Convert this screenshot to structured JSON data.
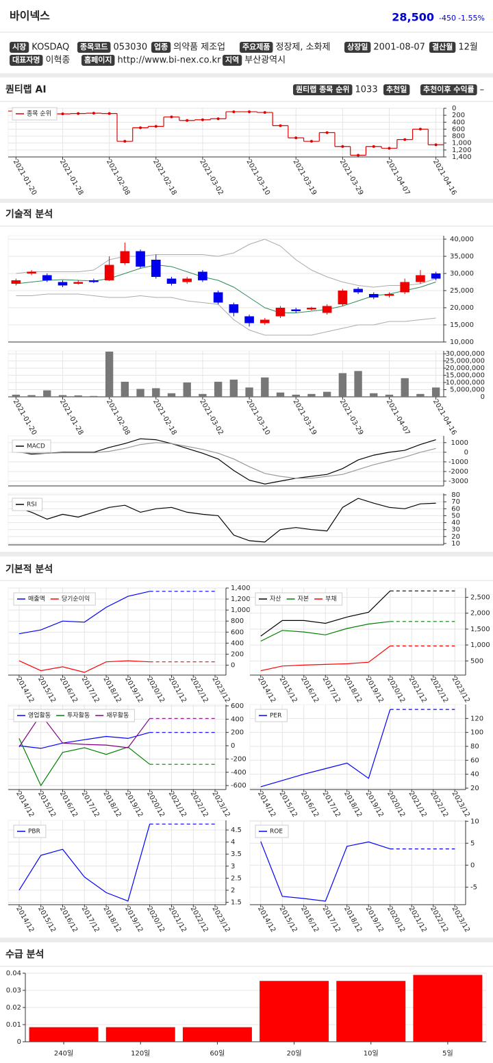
{
  "header": {
    "name": "바이넥스",
    "price": "28,500",
    "change": "-450",
    "change_rate": "-1.55%"
  },
  "info": [
    {
      "label": "시장",
      "value": "KOSDAQ"
    },
    {
      "label": "종목코드",
      "value": "053030"
    },
    {
      "label": "업종",
      "value": "의약품 제조업"
    },
    {
      "label": "주요제품",
      "value": "정장제, 소화제"
    },
    {
      "label": "상장일",
      "value": "2001-08-07"
    },
    {
      "label": "결산월",
      "value": "12월"
    },
    {
      "label": "대표자명",
      "value": "이혁종"
    },
    {
      "label": "홈페이지",
      "value": "http://www.bi-nex.co.kr"
    },
    {
      "label": "지역",
      "value": "부산광역시"
    }
  ],
  "sections": [
    "퀀티랩 AI",
    "기술적 분석",
    "기본적 분석",
    "수급 분석"
  ],
  "quantilab": [
    {
      "label": "퀀티랩 종목 순위",
      "value": 1033
    },
    {
      "label": "추천일"
    },
    {
      "label": "추천이후 수익률",
      "value": "–"
    }
  ],
  "chart_data": [
    {
      "type": "step",
      "y_inverted": true,
      "grid": true,
      "categories": [
        "2021-01-20",
        null,
        null,
        "2021-01-28",
        null,
        null,
        "2021-02-08",
        null,
        null,
        "2021-02-18",
        null,
        null,
        "2021-03-02",
        null,
        null,
        "2021-03-10",
        null,
        null,
        "2021-03-19",
        null,
        null,
        "2021-03-29",
        null,
        null,
        "2021-04-07",
        null,
        null,
        "2021-04-16"
      ],
      "series": [
        {
          "name": "종목 순위",
          "color": "#e00000",
          "values": [
            80,
            270,
            180,
            160,
            150,
            140,
            150,
            950,
            560,
            520,
            250,
            350,
            330,
            300,
            100,
            100,
            120,
            500,
            850,
            950,
            700,
            1100,
            1350,
            1100,
            1150,
            900,
            600,
            1050
          ]
        }
      ],
      "ylim": [
        0,
        1400
      ],
      "yticks": [
        0,
        200,
        400,
        600,
        800,
        {
          "value": 1000,
          "label": "1,000"
        },
        {
          "value": 1200,
          "label": "1,200"
        },
        {
          "value": 1400,
          "label": "1,400"
        }
      ]
    },
    {
      "type": "candlestick",
      "grid": true,
      "up_color": "#ee0000",
      "down_color": "#0000ee",
      "open": [
        27000,
        30000,
        29500,
        27500,
        27000,
        28000,
        28000,
        33000,
        36500,
        34000,
        28500,
        27500,
        30500,
        24500,
        21000,
        17500,
        15500,
        17500,
        19500,
        19500,
        18500,
        21000,
        25500,
        24000,
        23500,
        24500,
        27500,
        30000
      ],
      "high": [
        28500,
        31000,
        30000,
        28000,
        28000,
        28500,
        35000,
        39000,
        37000,
        35500,
        29000,
        29000,
        31000,
        25000,
        21500,
        18000,
        17000,
        20500,
        20000,
        20300,
        21000,
        25500,
        26000,
        24500,
        24500,
        28500,
        31000,
        30500
      ],
      "low": [
        26500,
        29500,
        27500,
        26000,
        26800,
        27200,
        27800,
        32500,
        31500,
        28500,
        26500,
        27000,
        27500,
        21000,
        17500,
        14500,
        15000,
        17000,
        18500,
        19200,
        18000,
        20500,
        24000,
        22500,
        23000,
        24000,
        27000,
        28000
      ],
      "close": [
        28000,
        30500,
        28000,
        26500,
        27500,
        27500,
        32500,
        36500,
        32000,
        29000,
        27000,
        28500,
        28000,
        21500,
        18500,
        15500,
        16500,
        20000,
        19000,
        20000,
        20500,
        25000,
        24500,
        23000,
        24000,
        27500,
        29500,
        28500
      ],
      "lines": [
        {
          "color": "#2e8b57",
          "values": [
            27000,
            27500,
            28000,
            28200,
            28000,
            27800,
            28500,
            30000,
            31500,
            32500,
            32000,
            30500,
            29000,
            28000,
            26000,
            23000,
            20000,
            18500,
            18500,
            19000,
            19500,
            20500,
            22000,
            23500,
            24000,
            25000,
            26000,
            27500
          ]
        },
        {
          "color": "#aaaaaa",
          "values": [
            30000,
            30500,
            30500,
            30500,
            30500,
            31000,
            34000,
            35000,
            35000,
            35500,
            35500,
            35500,
            35500,
            35000,
            36000,
            38500,
            40000,
            38000,
            34000,
            31000,
            29000,
            27500,
            26500,
            26000,
            26500,
            26500,
            27000,
            28500
          ]
        },
        {
          "color": "#aaaaaa",
          "values": [
            23500,
            23500,
            24000,
            24000,
            24000,
            23500,
            23000,
            23000,
            23500,
            23000,
            23000,
            22000,
            21500,
            21000,
            16500,
            13500,
            12000,
            12000,
            12000,
            12000,
            13000,
            14000,
            15000,
            15000,
            16000,
            16000,
            16500,
            17000
          ]
        }
      ],
      "ylim": [
        10000,
        41000
      ],
      "yticks": [
        {
          "value": 10000,
          "label": "10,000"
        },
        {
          "value": 15000,
          "label": "15,000"
        },
        {
          "value": 20000,
          "label": "20,000"
        },
        {
          "value": 25000,
          "label": "25,000"
        },
        {
          "value": 30000,
          "label": "30,000"
        },
        {
          "value": 35000,
          "label": "35,000"
        },
        {
          "value": 40000,
          "label": "40,000"
        }
      ]
    },
    {
      "type": "bar",
      "grid": true,
      "color": "#777777",
      "categories": [
        "2021-01-20",
        null,
        null,
        "2021-01-28",
        null,
        null,
        "2021-02-08",
        null,
        null,
        "2021-02-18",
        null,
        null,
        "2021-03-02",
        null,
        null,
        "2021-03-10",
        null,
        null,
        "2021-03-19",
        null,
        null,
        "2021-03-29",
        null,
        null,
        "2021-04-07",
        null,
        null,
        "2021-04-16"
      ],
      "values": [
        1500000,
        1200000,
        4500000,
        1200000,
        1000000,
        600000,
        31500000,
        10500000,
        5500000,
        6000000,
        2500000,
        10000000,
        2000000,
        10500000,
        12000000,
        6500000,
        13500000,
        3000000,
        1500000,
        2000000,
        3500000,
        16500000,
        18000000,
        2500000,
        1500000,
        13000000,
        2000000,
        6500000
      ],
      "ylim": [
        0,
        32000000
      ],
      "yticks": [
        0,
        {
          "value": 5000000,
          "label": "5,000,000"
        },
        {
          "value": 10000000,
          "label": "10,000,000"
        },
        {
          "value": 15000000,
          "label": "15,000,000"
        },
        {
          "value": 20000000,
          "label": "20,000,000"
        },
        {
          "value": 25000000,
          "label": "25,000,000"
        },
        {
          "value": 30000000,
          "label": "30,000,000"
        }
      ]
    },
    {
      "type": "line",
      "grid": true,
      "series": [
        {
          "name": "MACD",
          "color": "#000000",
          "values": [
            100,
            -200,
            -100,
            0,
            0,
            0,
            500,
            900,
            1400,
            1300,
            900,
            400,
            -100,
            -700,
            -1900,
            -2900,
            -3300,
            -3000,
            -2700,
            -2500,
            -2300,
            -1700,
            -800,
            -300,
            0,
            200,
            800,
            1300
          ]
        },
        {
          "color": "#999999",
          "values": [
            0,
            -100,
            -100,
            -50,
            -50,
            -50,
            100,
            400,
            800,
            1000,
            900,
            600,
            300,
            -100,
            -700,
            -1500,
            -2200,
            -2500,
            -2700,
            -2700,
            -2500,
            -2300,
            -1800,
            -1300,
            -900,
            -500,
            0,
            400
          ]
        }
      ],
      "ylim": [
        -3500,
        1700
      ],
      "yticks": [
        -3000,
        -2000,
        -1000,
        0,
        1000
      ]
    },
    {
      "type": "line",
      "grid": true,
      "series": [
        {
          "name": "RSI",
          "color": "#000000",
          "values": [
            62,
            55,
            45,
            52,
            48,
            55,
            62,
            65,
            55,
            60,
            62,
            55,
            52,
            50,
            22,
            14,
            12,
            30,
            33,
            30,
            28,
            62,
            75,
            68,
            62,
            60,
            67,
            68
          ]
        }
      ],
      "ylim": [
        8,
        82
      ],
      "yticks": [
        10,
        20,
        30,
        40,
        50,
        60,
        70,
        80
      ]
    },
    {
      "type": "line",
      "grid": true,
      "categories": [
        "2014/12",
        "2015/12",
        "2016/12",
        "2017/12",
        "2018/12",
        "2019/12",
        "2020/12",
        "2021/12",
        "2022/12",
        "2023/12"
      ],
      "series": [
        {
          "name": "매출액",
          "color": "#0000ff",
          "values": [
            570,
            640,
            800,
            780,
            1050,
            1250,
            1340,
            null,
            null,
            null
          ],
          "forecast": [
            null,
            null,
            null,
            null,
            null,
            null,
            1340,
            1340,
            1340,
            1340
          ]
        },
        {
          "name": "당기순이익",
          "color": "#ff0000",
          "values": [
            80,
            -100,
            -30,
            -130,
            60,
            80,
            60,
            null,
            null,
            null
          ],
          "forecast": [
            null,
            null,
            null,
            null,
            null,
            null,
            60,
            60,
            60,
            60
          ]
        }
      ],
      "ylim": [
        -180,
        1400
      ],
      "yticks": [
        0,
        200,
        400,
        600,
        800,
        {
          "value": 1000,
          "label": "1,000"
        },
        {
          "value": 1200,
          "label": "1,200"
        },
        {
          "value": 1400,
          "label": "1,400"
        }
      ]
    },
    {
      "type": "line",
      "grid": true,
      "categories": [
        "2014/12",
        "2015/12",
        "2016/12",
        "2017/12",
        "2018/12",
        "2019/12",
        "2020/12",
        "2021/12",
        "2022/12",
        "2023/12"
      ],
      "series": [
        {
          "name": "자산",
          "color": "#000000",
          "values": [
            1280,
            1770,
            1770,
            1680,
            1880,
            2030,
            2700,
            null,
            null,
            null
          ],
          "forecast": [
            null,
            null,
            null,
            null,
            null,
            null,
            2700,
            2700,
            2700,
            2700
          ]
        },
        {
          "name": "자본",
          "color": "#008000",
          "values": [
            1120,
            1460,
            1410,
            1320,
            1520,
            1660,
            1740,
            null,
            null,
            null
          ],
          "forecast": [
            null,
            null,
            null,
            null,
            null,
            null,
            1740,
            1740,
            1740,
            1740
          ]
        },
        {
          "name": "부채",
          "color": "#ff0000",
          "values": [
            190,
            340,
            370,
            390,
            410,
            460,
            970,
            null,
            null,
            null
          ],
          "forecast": [
            null,
            null,
            null,
            null,
            null,
            null,
            970,
            970,
            970,
            970
          ]
        }
      ],
      "ylim": [
        55,
        2790
      ],
      "yticks": [
        500,
        {
          "value": 1000,
          "label": "1,000"
        },
        {
          "value": 1500,
          "label": "1,500"
        },
        {
          "value": 2000,
          "label": "2,000"
        },
        {
          "value": 2500,
          "label": "2,500"
        }
      ]
    },
    {
      "type": "line",
      "grid": true,
      "categories": [
        "2014/12",
        "2015/12",
        "2016/12",
        "2017/12",
        "2018/12",
        "2019/12",
        "2020/12",
        "2021/12",
        "2022/12",
        "2023/12"
      ],
      "series": [
        {
          "name": "영업활동",
          "color": "#0000ff",
          "values": [
            0,
            -40,
            40,
            90,
            140,
            110,
            200,
            null,
            null,
            null
          ],
          "forecast": [
            null,
            null,
            null,
            null,
            null,
            null,
            200,
            200,
            200,
            200
          ]
        },
        {
          "name": "투자활동",
          "color": "#008000",
          "values": [
            110,
            -600,
            -100,
            -30,
            -130,
            -20,
            -280,
            null,
            null,
            null
          ],
          "forecast": [
            null,
            null,
            null,
            null,
            null,
            null,
            -280,
            -280,
            -280,
            -280
          ]
        },
        {
          "name": "재무활동",
          "color": "#800080",
          "values": [
            -20,
            470,
            40,
            20,
            10,
            -30,
            410,
            null,
            null,
            null
          ],
          "forecast": [
            null,
            null,
            null,
            null,
            null,
            null,
            410,
            410,
            410,
            410
          ]
        }
      ],
      "ylim": [
        -660,
        620
      ],
      "yticks": [
        -600,
        -400,
        -200,
        0,
        200,
        400,
        600
      ]
    },
    {
      "type": "line",
      "grid": true,
      "categories": [
        "2014/12",
        "2015/12",
        "2016/12",
        "2017/12",
        "2018/12",
        "2019/12",
        "2020/12",
        "2021/12",
        "2022/12",
        "2023/12"
      ],
      "series": [
        {
          "name": "PER",
          "color": "#0000ff",
          "values": [
            22,
            31,
            40,
            48,
            56,
            34,
            133,
            null,
            null,
            null
          ],
          "forecast": [
            null,
            null,
            null,
            null,
            null,
            null,
            133,
            133,
            133,
            133
          ]
        }
      ],
      "ylim": [
        18,
        140
      ],
      "yticks": [
        20,
        40,
        60,
        80,
        100,
        120
      ]
    },
    {
      "type": "line",
      "grid": true,
      "categories": [
        "2014/12",
        "2015/12",
        "2016/12",
        "2017/12",
        "2018/12",
        "2019/12",
        "2020/12",
        "2021/12",
        "2022/12",
        "2023/12"
      ],
      "series": [
        {
          "name": "PBR",
          "color": "#0000ff",
          "values": [
            2.0,
            3.45,
            3.7,
            2.55,
            1.9,
            1.55,
            4.75,
            null,
            null,
            null
          ],
          "forecast": [
            null,
            null,
            null,
            null,
            null,
            null,
            4.75,
            4.75,
            4.75,
            4.75
          ]
        }
      ],
      "ylim": [
        1.4,
        4.9
      ],
      "yticks": [
        1.5,
        2,
        2.5,
        3,
        3.5,
        4,
        4.5
      ]
    },
    {
      "type": "line",
      "grid": true,
      "categories": [
        "2014/12",
        "2015/12",
        "2016/12",
        "2017/12",
        "2018/12",
        "2019/12",
        "2020/12",
        "2021/12",
        "2022/12",
        "2023/12"
      ],
      "series": [
        {
          "name": "ROE",
          "color": "#0000ff",
          "values": [
            5.4,
            -7.1,
            -7.6,
            -8.2,
            4.3,
            5.3,
            3.7,
            null,
            null,
            null
          ],
          "forecast": [
            null,
            null,
            null,
            null,
            null,
            null,
            3.7,
            3.7,
            3.7,
            3.7
          ]
        }
      ],
      "ylim": [
        -9,
        10.2
      ],
      "yticks": [
        -5,
        0,
        5,
        10
      ]
    },
    {
      "type": "bar",
      "grid": true,
      "color": "#ff0000",
      "categories": [
        "240일",
        "120일",
        "60일",
        "20일",
        "10일",
        "5일"
      ],
      "values": [
        0.0085,
        0.0085,
        0.0085,
        0.0355,
        0.0355,
        0.039
      ],
      "ylim": [
        0,
        0.04
      ],
      "yticks": [
        0,
        0.01,
        0.02,
        0.03,
        0.04
      ]
    }
  ]
}
